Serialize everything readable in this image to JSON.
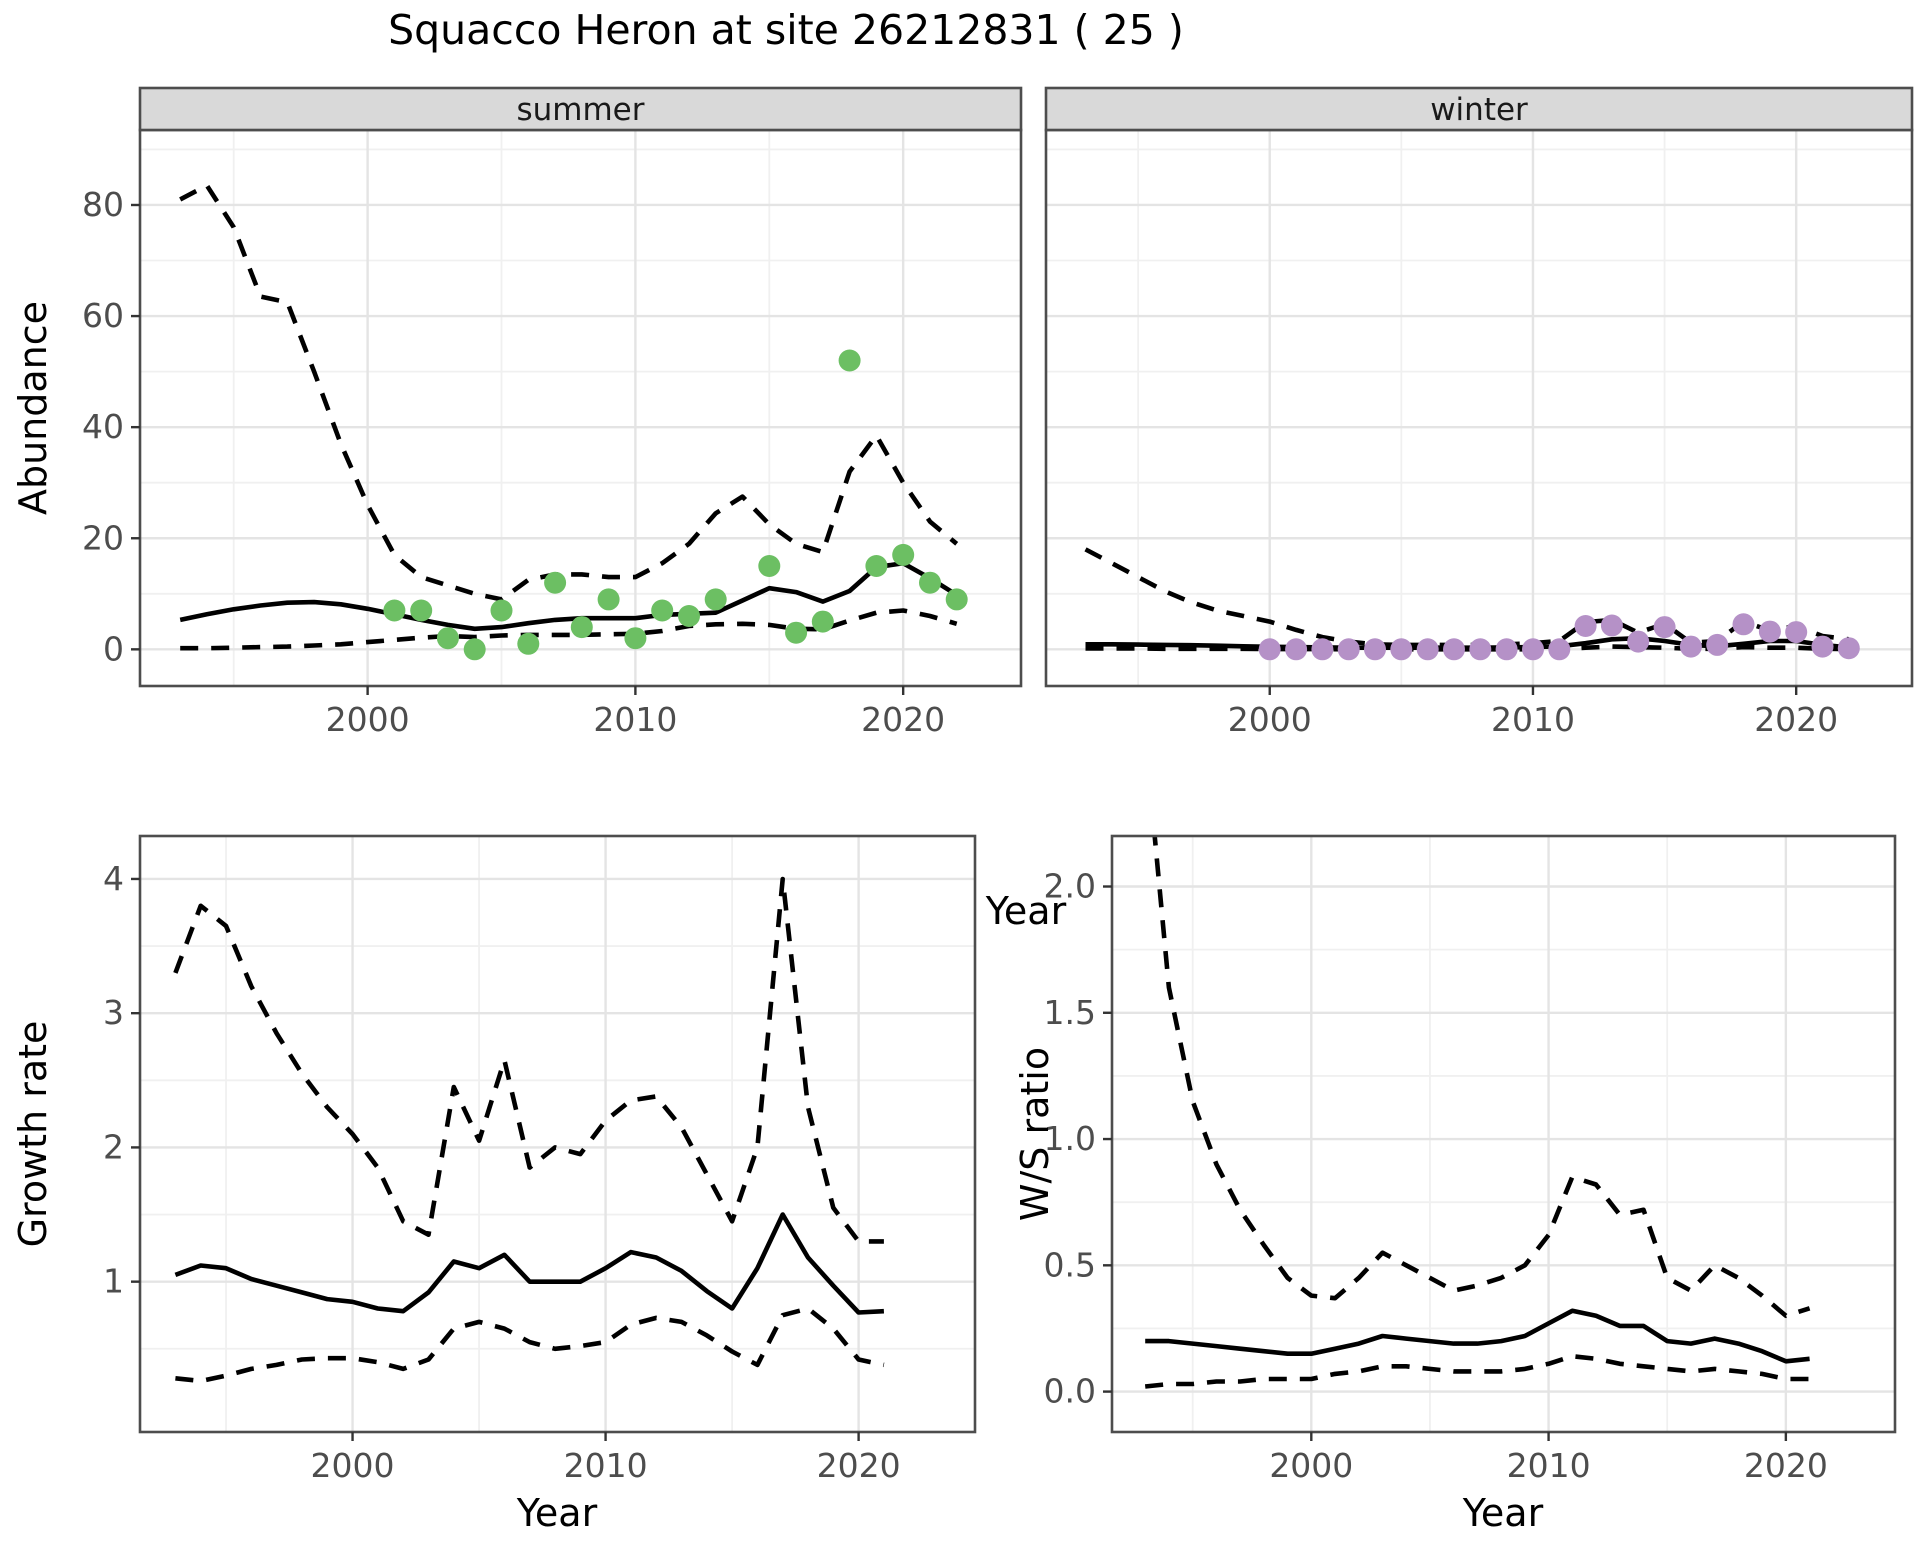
{
  "title": "Squacco Heron at site 26212831 ( 25 )",
  "colors": {
    "summer_points": "#6CBF63",
    "winter_points": "#B591C7",
    "line": "#000000",
    "strip_bg": "#D9D9D9",
    "panel_border": "#4D4D4D",
    "grid_major": "#E4E4E4",
    "grid_minor": "#F0F0F0",
    "tick": "#333333",
    "tick_label": "#4D4D4D"
  },
  "chart_data": [
    {
      "id": "abundance-summer",
      "type": "line",
      "facet": "summer",
      "xlabel": "Year",
      "ylabel": "Abundance",
      "grid": true,
      "legend": "none",
      "xlim": [
        1991.5,
        2024.4
      ],
      "ylim": [
        -6.6,
        93.5
      ],
      "xticks": [
        2000,
        2010,
        2020
      ],
      "xtick_labels": [
        "2000",
        "2010",
        "2020"
      ],
      "xminor": [
        1995,
        2005,
        2015
      ],
      "yticks": [
        0,
        20,
        40,
        60,
        80
      ],
      "ytick_labels": [
        "0",
        "20",
        "40",
        "60",
        "80"
      ],
      "yminor": [
        10,
        30,
        50,
        70,
        90
      ],
      "x": [
        1993,
        1994,
        1995,
        1996,
        1997,
        1998,
        1999,
        2000,
        2001,
        2002,
        2003,
        2004,
        2005,
        2006,
        2007,
        2008,
        2009,
        2010,
        2011,
        2012,
        2013,
        2014,
        2015,
        2016,
        2017,
        2018,
        2019,
        2020,
        2021,
        2022
      ],
      "series": [
        {
          "name": "fit",
          "style": "solid",
          "values": [
            5.3,
            6.3,
            7.2,
            7.9,
            8.4,
            8.5,
            8.1,
            7.3,
            6.3,
            5.3,
            4.4,
            3.7,
            4.0,
            4.7,
            5.3,
            5.6,
            5.6,
            5.6,
            6.2,
            6.4,
            6.6,
            8.8,
            11.0,
            10.3,
            8.6,
            10.5,
            14.8,
            15.5,
            12.8,
            9.8
          ]
        },
        {
          "name": "upper95",
          "style": "dashed",
          "values": [
            81,
            83.5,
            76,
            63.5,
            62.5,
            50,
            37,
            26,
            17,
            13,
            11.5,
            10,
            9,
            12.5,
            13.5,
            13.5,
            13,
            13,
            15.5,
            19,
            24.5,
            27.5,
            22.5,
            19,
            17.5,
            32,
            38.5,
            30,
            23,
            19
          ]
        },
        {
          "name": "lower95",
          "style": "dashed",
          "values": [
            0.2,
            0.2,
            0.3,
            0.4,
            0.5,
            0.7,
            0.9,
            1.3,
            1.7,
            2.1,
            2.4,
            2.2,
            2.5,
            2.6,
            2.6,
            2.6,
            2.7,
            2.8,
            3.3,
            4.2,
            4.5,
            4.6,
            4.4,
            3.7,
            3.6,
            5.2,
            6.6,
            7.0,
            6.0,
            4.6
          ]
        }
      ],
      "points": {
        "name": "observed-summer",
        "color": "#6CBF63",
        "data": [
          [
            2001,
            7
          ],
          [
            2002,
            7
          ],
          [
            2003,
            2
          ],
          [
            2004,
            0
          ],
          [
            2005,
            7
          ],
          [
            2006,
            1
          ],
          [
            2007,
            12
          ],
          [
            2008,
            4
          ],
          [
            2009,
            9
          ],
          [
            2010,
            2
          ],
          [
            2011,
            7
          ],
          [
            2012,
            6
          ],
          [
            2013,
            9
          ],
          [
            2015,
            15
          ],
          [
            2016,
            3
          ],
          [
            2017,
            5
          ],
          [
            2018,
            52
          ],
          [
            2019,
            15
          ],
          [
            2020,
            17
          ],
          [
            2021,
            12
          ],
          [
            2022,
            9
          ]
        ]
      }
    },
    {
      "id": "abundance-winter",
      "type": "line",
      "facet": "winter",
      "xlabel": "Year",
      "ylabel": "Abundance",
      "grid": true,
      "legend": "none",
      "xlim": [
        1991.5,
        2024.4
      ],
      "ylim": [
        -6.6,
        93.5
      ],
      "xticks": [
        2000,
        2010,
        2020
      ],
      "xtick_labels": [
        "2000",
        "2010",
        "2020"
      ],
      "xminor": [
        1995,
        2005,
        2015
      ],
      "yticks": [
        0,
        20,
        40,
        60,
        80
      ],
      "ytick_labels": [
        "0",
        "20",
        "40",
        "60",
        "80"
      ],
      "yminor": [
        10,
        30,
        50,
        70,
        90
      ],
      "x": [
        1993,
        1994,
        1995,
        1996,
        1997,
        1998,
        1999,
        2000,
        2001,
        2002,
        2003,
        2004,
        2005,
        2006,
        2007,
        2008,
        2009,
        2010,
        2011,
        2012,
        2013,
        2014,
        2015,
        2016,
        2017,
        2018,
        2019,
        2020,
        2021,
        2022
      ],
      "series": [
        {
          "name": "fit",
          "style": "solid",
          "values": [
            0.9,
            0.9,
            0.85,
            0.8,
            0.75,
            0.65,
            0.55,
            0.45,
            0.4,
            0.35,
            0.3,
            0.3,
            0.3,
            0.3,
            0.3,
            0.3,
            0.35,
            0.4,
            0.55,
            1.1,
            1.8,
            2.0,
            1.5,
            0.8,
            0.55,
            1.0,
            1.5,
            1.5,
            0.8,
            0.35
          ]
        },
        {
          "name": "upper95",
          "style": "dashed",
          "values": [
            18,
            15.5,
            13,
            10.5,
            8.5,
            7,
            6,
            5,
            3.5,
            2.2,
            1.4,
            0.9,
            0.8,
            0.8,
            0.8,
            0.8,
            0.9,
            1.1,
            1.5,
            4.9,
            5.3,
            3.0,
            4.6,
            1.2,
            1.5,
            5.0,
            3.4,
            4.2,
            2.4,
            1.8
          ]
        },
        {
          "name": "lower95",
          "style": "dashed",
          "values": [
            0.15,
            0.15,
            0.15,
            0.1,
            0.1,
            0.1,
            0.1,
            0.05,
            0.05,
            0.05,
            0,
            0,
            0,
            0,
            0,
            0,
            0,
            0,
            0.05,
            0.3,
            0.5,
            0.4,
            0.3,
            0.1,
            0.1,
            0.4,
            0.3,
            0.3,
            0.1,
            0.05
          ]
        }
      ],
      "points": {
        "name": "observed-winter",
        "color": "#B591C7",
        "data": [
          [
            2000,
            0
          ],
          [
            2001,
            0
          ],
          [
            2002,
            0
          ],
          [
            2003,
            0
          ],
          [
            2004,
            0
          ],
          [
            2005,
            0
          ],
          [
            2006,
            0
          ],
          [
            2007,
            0
          ],
          [
            2008,
            0
          ],
          [
            2009,
            0
          ],
          [
            2010,
            0
          ],
          [
            2011,
            0
          ],
          [
            2012,
            4.2
          ],
          [
            2013,
            4.3
          ],
          [
            2014,
            1.4
          ],
          [
            2015,
            4.0
          ],
          [
            2016,
            0.5
          ],
          [
            2017,
            0.8
          ],
          [
            2018,
            4.5
          ],
          [
            2019,
            3.2
          ],
          [
            2020,
            3.1
          ],
          [
            2021,
            0.5
          ],
          [
            2022,
            0.2
          ]
        ]
      }
    },
    {
      "id": "growth-rate",
      "type": "line",
      "facet": null,
      "xlabel": "Year",
      "ylabel": "Growth rate",
      "grid": true,
      "legend": "none",
      "xlim": [
        1991.6,
        2024.6
      ],
      "ylim": [
        -0.12,
        4.32
      ],
      "xticks": [
        2000,
        2010,
        2020
      ],
      "xtick_labels": [
        "2000",
        "2010",
        "2020"
      ],
      "xminor": [
        1995,
        2005,
        2015
      ],
      "yticks": [
        1,
        2,
        3,
        4
      ],
      "ytick_labels": [
        "1",
        "2",
        "3",
        "4"
      ],
      "yminor": [
        0.5,
        1.5,
        2.5,
        3.5
      ],
      "x": [
        1993,
        1994,
        1995,
        1996,
        1997,
        1998,
        1999,
        2000,
        2001,
        2002,
        2003,
        2004,
        2005,
        2006,
        2007,
        2008,
        2009,
        2010,
        2011,
        2012,
        2013,
        2014,
        2015,
        2016,
        2017,
        2018,
        2019,
        2020,
        2021
      ],
      "series": [
        {
          "name": "fit",
          "style": "solid",
          "values": [
            1.05,
            1.12,
            1.1,
            1.02,
            0.97,
            0.92,
            0.87,
            0.85,
            0.8,
            0.78,
            0.92,
            1.15,
            1.1,
            1.2,
            1.0,
            1.0,
            1.0,
            1.1,
            1.22,
            1.18,
            1.08,
            0.93,
            0.8,
            1.1,
            1.5,
            1.18,
            0.97,
            0.77,
            0.78
          ]
        },
        {
          "name": "upper95",
          "style": "dashed",
          "values": [
            3.3,
            3.8,
            3.65,
            3.2,
            2.85,
            2.55,
            2.3,
            2.1,
            1.85,
            1.45,
            1.35,
            2.45,
            2.05,
            2.65,
            1.85,
            2.0,
            1.95,
            2.2,
            2.35,
            2.38,
            2.15,
            1.8,
            1.45,
            2.0,
            4.0,
            2.3,
            1.55,
            1.3,
            1.3
          ]
        },
        {
          "name": "lower95",
          "style": "dashed",
          "values": [
            0.28,
            0.26,
            0.3,
            0.35,
            0.38,
            0.42,
            0.43,
            0.43,
            0.4,
            0.35,
            0.42,
            0.65,
            0.7,
            0.65,
            0.55,
            0.5,
            0.52,
            0.55,
            0.68,
            0.73,
            0.7,
            0.6,
            0.48,
            0.38,
            0.75,
            0.8,
            0.65,
            0.42,
            0.38
          ]
        }
      ],
      "points": null
    },
    {
      "id": "ws-ratio",
      "type": "line",
      "facet": null,
      "xlabel": "Year",
      "ylabel": "W/S ratio",
      "grid": true,
      "legend": "none",
      "xlim": [
        1991.6,
        2024.6
      ],
      "ylim": [
        -0.16,
        2.2
      ],
      "xticks": [
        2000,
        2010,
        2020
      ],
      "xtick_labels": [
        "2000",
        "2010",
        "2020"
      ],
      "xminor": [
        1995,
        2005,
        2015
      ],
      "yticks": [
        0,
        0.5,
        1,
        1.5,
        2
      ],
      "ytick_labels": [
        "0.0",
        "0.5",
        "1.0",
        "1.5",
        "2.0"
      ],
      "yminor": [
        0.25,
        0.75,
        1.25,
        1.75
      ],
      "x": [
        1993,
        1994,
        1995,
        1996,
        1997,
        1998,
        1999,
        2000,
        2001,
        2002,
        2003,
        2004,
        2005,
        2006,
        2007,
        2008,
        2009,
        2010,
        2011,
        2012,
        2013,
        2014,
        2015,
        2016,
        2017,
        2018,
        2019,
        2020,
        2021
      ],
      "series": [
        {
          "name": "fit",
          "style": "solid",
          "values": [
            0.2,
            0.2,
            0.19,
            0.18,
            0.17,
            0.16,
            0.15,
            0.15,
            0.17,
            0.19,
            0.22,
            0.21,
            0.2,
            0.19,
            0.19,
            0.2,
            0.22,
            0.27,
            0.32,
            0.3,
            0.26,
            0.26,
            0.2,
            0.19,
            0.21,
            0.19,
            0.16,
            0.12,
            0.13
          ]
        },
        {
          "name": "upper95",
          "style": "dashed",
          "values": [
            2.6,
            1.6,
            1.15,
            0.9,
            0.72,
            0.58,
            0.45,
            0.38,
            0.37,
            0.45,
            0.55,
            0.5,
            0.45,
            0.4,
            0.42,
            0.45,
            0.5,
            0.62,
            0.85,
            0.82,
            0.7,
            0.72,
            0.45,
            0.4,
            0.5,
            0.45,
            0.38,
            0.3,
            0.33
          ]
        },
        {
          "name": "lower95",
          "style": "dashed",
          "values": [
            0.02,
            0.03,
            0.03,
            0.04,
            0.04,
            0.05,
            0.05,
            0.05,
            0.07,
            0.08,
            0.1,
            0.1,
            0.09,
            0.08,
            0.08,
            0.08,
            0.09,
            0.11,
            0.14,
            0.13,
            0.11,
            0.1,
            0.09,
            0.08,
            0.09,
            0.08,
            0.07,
            0.05,
            0.05
          ]
        }
      ],
      "points": null
    }
  ]
}
